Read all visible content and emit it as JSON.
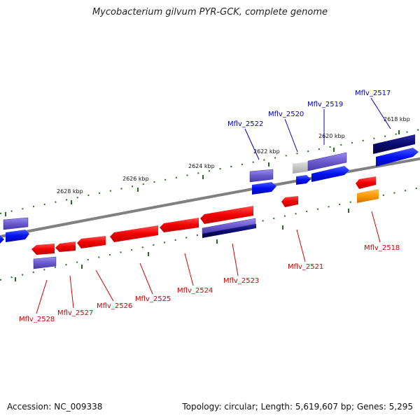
{
  "title": "Mycobacterium gilvum PYR-GCK, complete genome",
  "footer": {
    "accession": "Accession: NC_009338",
    "topology": "Topology: circular; Length: 5,619,607 bp; Genes: 5,295"
  },
  "colors": {
    "red": "#f20000",
    "blue": "#0010f0",
    "lavender": "#6a5acd",
    "navy": "#0a0a70",
    "gray": "#c0c0c0",
    "orange": "#ff9900",
    "backbone": "#808080",
    "tick": "#207020"
  },
  "kbp_labels": [
    "2628 kbp",
    "2626 kbp",
    "2624 kbp",
    "2622 kbp",
    "2620 kbp",
    "2618 kbp"
  ],
  "gene_labels_top": [
    "Mflv_2522",
    "Mflv_2520",
    "Mflv_2519",
    "Mflv_2517"
  ],
  "gene_labels_bottom": [
    "Mflv_2528",
    "Mflv_2527",
    "Mflv_2526",
    "Mflv_2525",
    "Mflv_2524",
    "Mflv_2523",
    "Mflv_2521",
    "Mflv_2518"
  ]
}
